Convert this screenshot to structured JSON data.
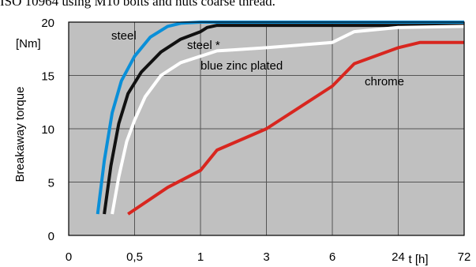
{
  "header": {
    "title": "ISO 10964 using M10 bolts and nuts coarse thread."
  },
  "chart_data": {
    "type": "line",
    "title": "",
    "ylabel": "Breakaway  torque",
    "yunit": "[Nm]",
    "xunit": "t [h]",
    "x_categories": [
      "0",
      "0,5",
      "1",
      "3",
      "6",
      "24",
      "72"
    ],
    "yticks": [
      "0",
      "5",
      "10",
      "15",
      "20"
    ],
    "ylim": [
      0,
      20
    ],
    "grid": true,
    "background": "#c0c0c0",
    "series": [
      {
        "name": "steel",
        "color": "#0a8fd8",
        "x": [
          0.22,
          0.27,
          0.33,
          0.4,
          0.5,
          0.62,
          0.75,
          0.85,
          1.0,
          2.0,
          6.0,
          72
        ],
        "y": [
          2,
          7,
          11.5,
          14.5,
          16.8,
          18.6,
          19.6,
          19.9,
          20,
          20,
          20,
          20
        ]
      },
      {
        "name": "steel *",
        "color": "#111111",
        "x": [
          0.27,
          0.32,
          0.38,
          0.45,
          0.55,
          0.7,
          0.85,
          1.0,
          1.2,
          1.5,
          3.0,
          24,
          72
        ],
        "y": [
          2,
          6.5,
          10.5,
          13.3,
          15.3,
          17.2,
          18.4,
          19.1,
          19.5,
          19.7,
          19.7,
          19.7,
          19.7
        ]
      },
      {
        "name": "blue zinc plated",
        "color": "#ffffff",
        "x": [
          0.33,
          0.38,
          0.44,
          0.5,
          0.58,
          0.7,
          0.85,
          1.0,
          1.5,
          2.0,
          3.0,
          6.0,
          12,
          24,
          72
        ],
        "y": [
          2,
          5.5,
          8.8,
          10.8,
          13,
          15,
          16.2,
          16.8,
          17.3,
          17.4,
          17.6,
          18.1,
          19.1,
          19.5,
          19.6
        ]
      },
      {
        "name": "chrome",
        "color": "#d8261f",
        "x": [
          0.45,
          0.75,
          1.0,
          1.5,
          3.0,
          6.0,
          12,
          24,
          40,
          72
        ],
        "y": [
          2,
          4.5,
          6.1,
          8,
          10,
          14,
          16.1,
          17.6,
          18.1,
          18.1
        ]
      }
    ]
  }
}
